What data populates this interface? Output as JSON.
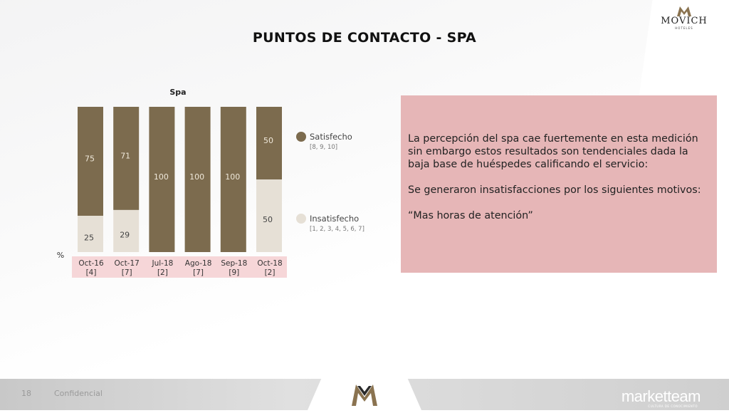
{
  "header": {
    "title": "PUNTOS DE CONTACTO - SPA",
    "brand": "MOVICH",
    "brand_sub": "HOTELES"
  },
  "chart_data": {
    "type": "bar",
    "stacked": true,
    "title": "Spa",
    "unit_label": "%",
    "categories": [
      "Oct-16",
      "Oct-17",
      "Jul-18",
      "Ago-18",
      "Sep-18",
      "Oct-18"
    ],
    "bases": [
      "[4]",
      "[7]",
      "[2]",
      "[7]",
      "[9]",
      "[2]"
    ],
    "series": [
      {
        "name": "Insatisfecho",
        "detail": "[1, 2, 3, 4, 5, 6, 7]",
        "color": "#e6e0d6",
        "values": [
          25,
          29,
          0,
          0,
          0,
          50
        ]
      },
      {
        "name": "Satisfecho",
        "detail": "[8, 9, 10]",
        "color": "#7c6b4e",
        "values": [
          75,
          71,
          100,
          100,
          100,
          50
        ]
      }
    ],
    "ylim": [
      0,
      100
    ],
    "legend": "right"
  },
  "commentary": {
    "paragraph1": "La percepción del spa cae fuertemente en esta medición sin embargo estos resultados son tendenciales dada la baja base de huéspedes calificando el servicio:",
    "paragraph2": "Se generaron insatisfacciones por los siguientes motivos:",
    "paragraph3": "“Mas horas de atención”"
  },
  "footer": {
    "page_number": "18",
    "confidential": "Confidencial",
    "company": "marketteam",
    "company_sub": "CULTURA DE CONOCIMIENTO"
  },
  "colors": {
    "satisfied": "#7c6b4e",
    "unsatisfied": "#e6e0d6",
    "label_band": "#f6d6d8",
    "commentary_bg": "#e6b6b7"
  }
}
